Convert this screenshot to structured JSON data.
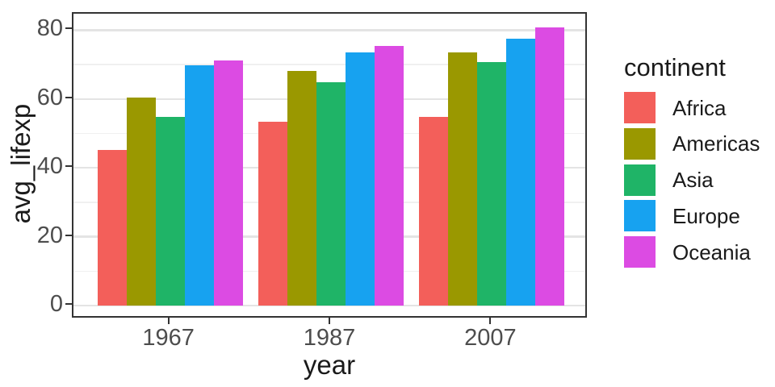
{
  "chart_data": {
    "type": "bar",
    "title": "",
    "xlabel": "year",
    "ylabel": "avg_lifexp",
    "categories": [
      "1967",
      "1987",
      "2007"
    ],
    "series": [
      {
        "name": "Africa",
        "color": "#F35F5A",
        "values": [
          45.3,
          53.3,
          54.8
        ]
      },
      {
        "name": "Americas",
        "color": "#9A9800",
        "values": [
          60.4,
          68.1,
          73.6
        ]
      },
      {
        "name": "Asia",
        "color": "#1FB467",
        "values": [
          54.7,
          64.9,
          70.7
        ]
      },
      {
        "name": "Europe",
        "color": "#17A2F0",
        "values": [
          69.7,
          73.6,
          77.6
        ]
      },
      {
        "name": "Oceania",
        "color": "#DC4BE3",
        "values": [
          71.3,
          75.3,
          80.7
        ]
      }
    ],
    "legend_title": "continent",
    "legend_position": "right",
    "ylim": [
      0,
      80
    ],
    "yticks": [
      0,
      20,
      40,
      60,
      80
    ],
    "ytick_labels": [
      "0",
      "20",
      "40",
      "60",
      "80"
    ],
    "yticks_minor": [
      10,
      30,
      50,
      70
    ],
    "grid": "major and minor horizontal gridlines"
  },
  "style": {
    "background": "#FFFFFF",
    "panel_border": "#333333",
    "grid_major_color": "#E4E4E4",
    "grid_minor_color": "#F0F0F0",
    "tick_color": "#333333",
    "tick_label_color": "#4D4D4D",
    "title_color": "#1A1A1A"
  }
}
